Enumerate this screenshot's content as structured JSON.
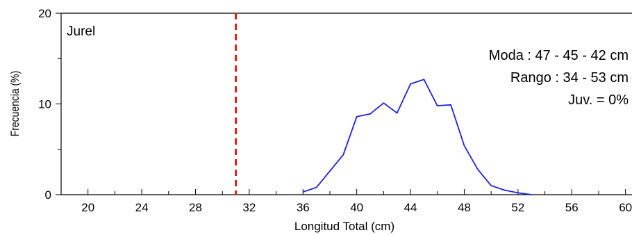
{
  "chart_data": {
    "type": "line",
    "title": "Jurel",
    "xlabel": "Longitud Total (cm)",
    "ylabel": "Frecuencia (%)",
    "xlim": [
      18,
      61
    ],
    "ylim": [
      0,
      20
    ],
    "x_ticks": [
      20,
      24,
      28,
      32,
      36,
      40,
      44,
      48,
      52,
      56,
      60
    ],
    "y_ticks": [
      0,
      10,
      20
    ],
    "grid": false,
    "series": [
      {
        "color": "#1f1fe0",
        "x": [
          36,
          37,
          38,
          39,
          40,
          41,
          42,
          43,
          44,
          45,
          46,
          47,
          48,
          49,
          50,
          51,
          52,
          53
        ],
        "y": [
          0.3,
          0.8,
          2.6,
          4.4,
          8.6,
          8.9,
          10.1,
          9.0,
          12.2,
          12.7,
          9.8,
          9.9,
          5.4,
          2.8,
          1.0,
          0.5,
          0.2,
          0.0
        ]
      }
    ],
    "reference_line": {
      "x": 31,
      "color": "#e02020",
      "style": "dashed"
    },
    "annotations": [
      "Moda : 47 - 45 - 42 cm",
      "Rango : 34 - 53 cm",
      "Juv. = 0%"
    ]
  }
}
